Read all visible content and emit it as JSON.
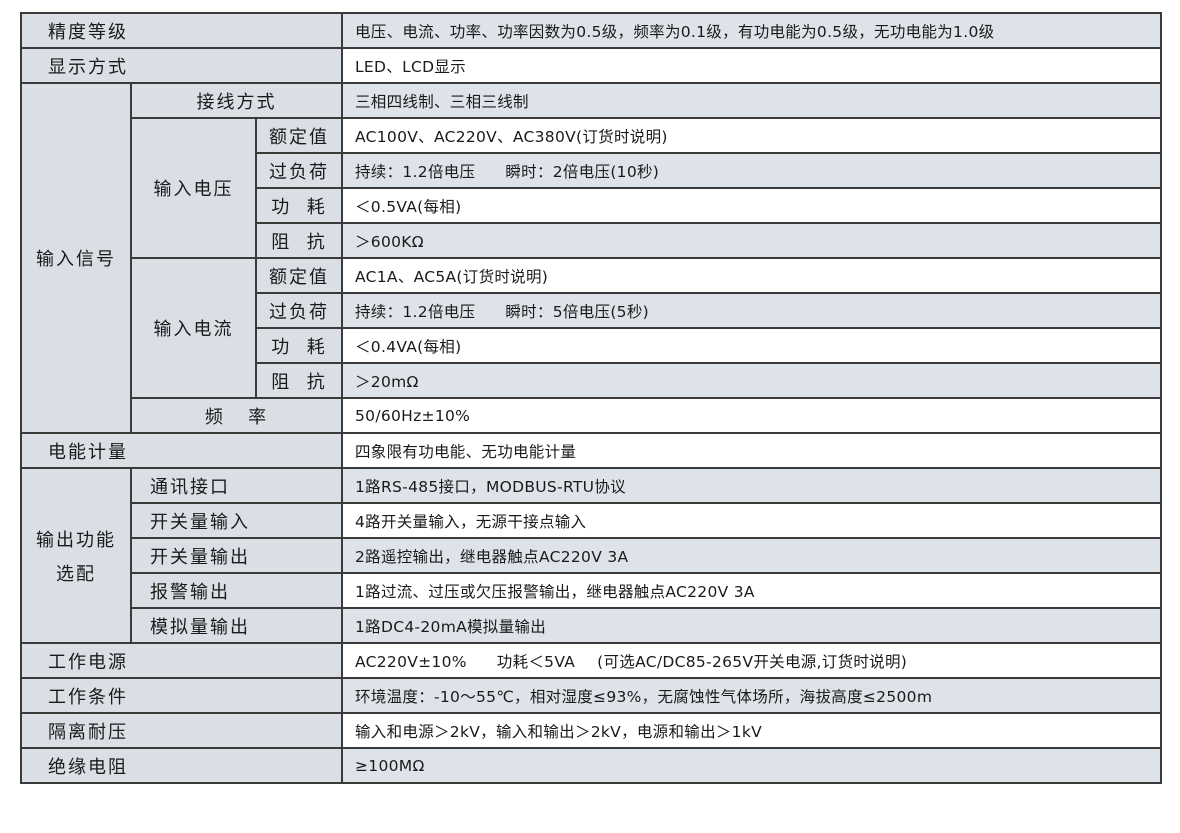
{
  "rows": {
    "accuracy": {
      "label": "精度等级",
      "value": "电压、电流、功率、功率因数为0.5级，频率为0.1级，有功电能为0.5级，无功电能为1.0级"
    },
    "display": {
      "label": "显示方式",
      "value": "LED、LCD显示"
    },
    "input_signal": {
      "label": "输入信号",
      "wiring": {
        "label": "接线方式",
        "value": "三相四线制、三相三线制"
      },
      "voltage": {
        "label": "输入电压",
        "rated": {
          "label": "额定值",
          "value": "AC100V、AC220V、AC380V(订货时说明)"
        },
        "overload": {
          "label": "过负荷",
          "value_a": "持续：1.2倍电压",
          "value_b": "瞬时：2倍电压(10秒)"
        },
        "power": {
          "label": "功  耗",
          "value": "＜0.5VA(每相)"
        },
        "impedance": {
          "label": "阻  抗",
          "value": "＞600KΩ"
        }
      },
      "current": {
        "label": "输入电流",
        "rated": {
          "label": "额定值",
          "value": "AC1A、AC5A(订货时说明)"
        },
        "overload": {
          "label": "过负荷",
          "value_a": "持续：1.2倍电压",
          "value_b": "瞬时：5倍电压(5秒)"
        },
        "power": {
          "label": "功  耗",
          "value": "＜0.4VA(每相)"
        },
        "impedance": {
          "label": "阻  抗",
          "value": "＞20mΩ"
        }
      },
      "frequency": {
        "label": "频   率",
        "value": "50/60Hz±10%"
      }
    },
    "energy": {
      "label": "电能计量",
      "value": "四象限有功电能、无功电能计量"
    },
    "output": {
      "label_line1": "输出功能",
      "label_line2": "选配",
      "comm": {
        "label": "通讯接口",
        "value": "1路RS-485接口，MODBUS-RTU协议"
      },
      "di": {
        "label": "开关量输入",
        "value": "4路开关量输入，无源干接点输入"
      },
      "do": {
        "label": "开关量输出",
        "value": "2路遥控输出，继电器触点AC220V 3A"
      },
      "alarm": {
        "label": "报警输出",
        "value": "1路过流、过压或欠压报警输出，继电器触点AC220V 3A"
      },
      "analog": {
        "label": "模拟量输出",
        "value": "1路DC4-20mA模拟量输出"
      }
    },
    "power_supply": {
      "label": "工作电源",
      "value_a": "AC220V±10%",
      "value_b": "功耗＜5VA",
      "value_c": "(可选AC/DC85-265V开关电源,订货时说明)"
    },
    "conditions": {
      "label": "工作条件",
      "value": "环境温度：-10～55℃，相对湿度≤93%，无腐蚀性气体场所，海拔高度≤2500m"
    },
    "isolation": {
      "label": "隔离耐压",
      "value": "输入和电源＞2kV，输入和输出＞2kV，电源和输出＞1kV"
    },
    "insulation": {
      "label": "绝缘电阻",
      "value": "≥100MΩ"
    }
  },
  "colors": {
    "label_bg": "#d9dfe5",
    "shaded_bg": "#dde3e9",
    "border": "#3a3a3a"
  }
}
